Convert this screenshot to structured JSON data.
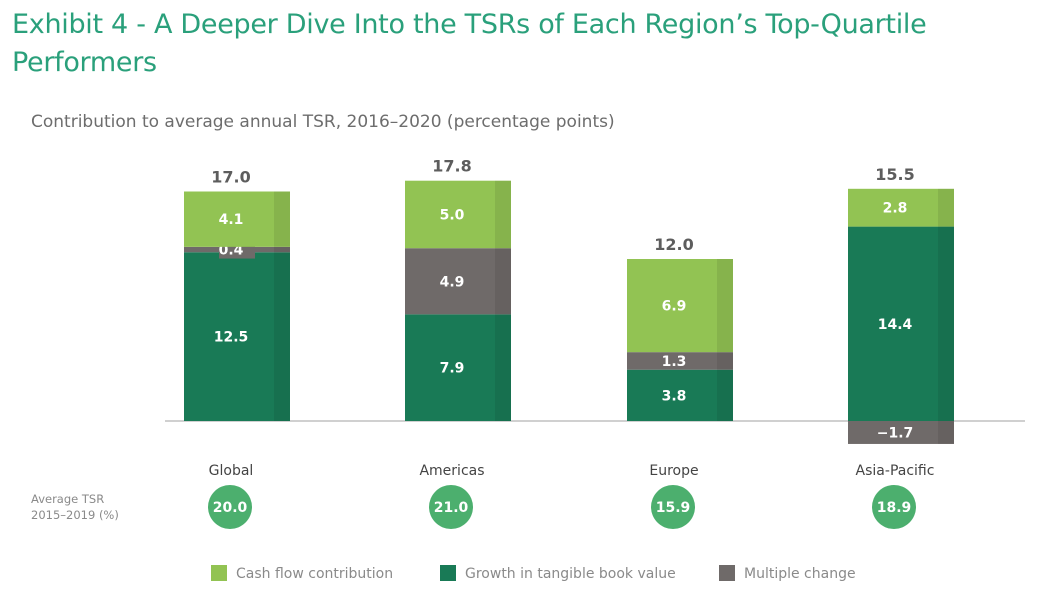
{
  "chart_data": {
    "type": "bar",
    "stacked": true,
    "title": "Exhibit 4 - A Deeper Dive Into the TSRs of Each Region’s Top-Quartile Performers",
    "subtitle": "Contribution to average annual TSR, 2016–2020 (percentage points)",
    "categories": [
      "Global",
      "Americas",
      "Europe",
      "Asia-Pacific"
    ],
    "totals": [
      "17.0",
      "17.8",
      "12.0",
      "15.5"
    ],
    "series": [
      {
        "name": "Growth in tangible book value",
        "color": "#197a56",
        "values": [
          12.5,
          7.9,
          3.8,
          14.4
        ]
      },
      {
        "name": "Multiple change",
        "color": "#6f6a69",
        "values": [
          0.4,
          4.9,
          1.3,
          -1.7
        ]
      },
      {
        "name": "Cash flow contribution",
        "color": "#92c353",
        "values": [
          4.1,
          5.0,
          6.9,
          2.8
        ]
      }
    ],
    "value_labels": [
      [
        "12.5",
        "7.9",
        "3.8",
        "14.4"
      ],
      [
        "0.4",
        "4.9",
        "1.3",
        "−1.7"
      ],
      [
        "4.1",
        "5.0",
        "6.9",
        "2.8"
      ]
    ],
    "average_tsr_label": [
      "Average TSR",
      "2015–2019 (%)"
    ],
    "average_tsr": [
      "20.0",
      "21.0",
      "15.9",
      "18.9"
    ],
    "average_tsr_color": "#4caf6e",
    "legend": [
      "Cash flow contribution",
      "Growth in tangible book value",
      "Multiple change"
    ],
    "legend_colors": [
      "#92c353",
      "#197a56",
      "#6f6a69"
    ],
    "legend_position": "bottom",
    "grid": false
  }
}
